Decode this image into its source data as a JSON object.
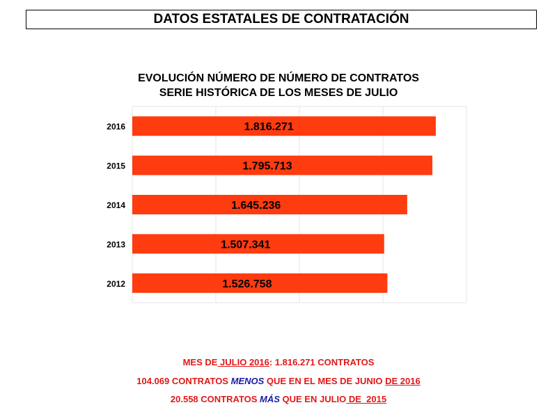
{
  "header": {
    "title": "DATOS ESTATALES DE  CONTRATACIÓN"
  },
  "colors": {
    "bar": "#ff3b10",
    "grid": "#e6e6e6",
    "text_red": "#e01818",
    "text_blue": "#1a1aa8"
  },
  "chart_data": {
    "type": "bar",
    "orientation": "horizontal",
    "title": "EVOLUCIÓN NÚMERO DE NÚMERO DE CONTRATOS",
    "subtitle": "SERIE HISTÓRICA DE LOS MESES DE JULIO",
    "categories": [
      "2016",
      "2015",
      "2014",
      "2013",
      "2012"
    ],
    "values": [
      1816271,
      1795713,
      1645236,
      1507341,
      1526758
    ],
    "value_labels": [
      "1.816.271",
      "1.795.713",
      "1.645.236",
      "1.507.341",
      "1.526.758"
    ],
    "xlim": [
      0,
      2000000
    ],
    "grid": true,
    "legend": "none"
  },
  "summary": {
    "line1": {
      "a": "MES DE",
      "b": " JULIO 2016",
      "c": ": 1.816.271 CONTRATOS"
    },
    "line2": {
      "a": "104.069 CONTRATOS ",
      "b": "MENOS",
      "c": " QUE EN EL MES DE JUNIO ",
      "d": "DE 2016"
    },
    "line3": {
      "a": "20.558 CONTRATOS ",
      "b": "MÁS",
      "c": " QUE EN JULIO",
      "d": " DE  2015"
    }
  }
}
